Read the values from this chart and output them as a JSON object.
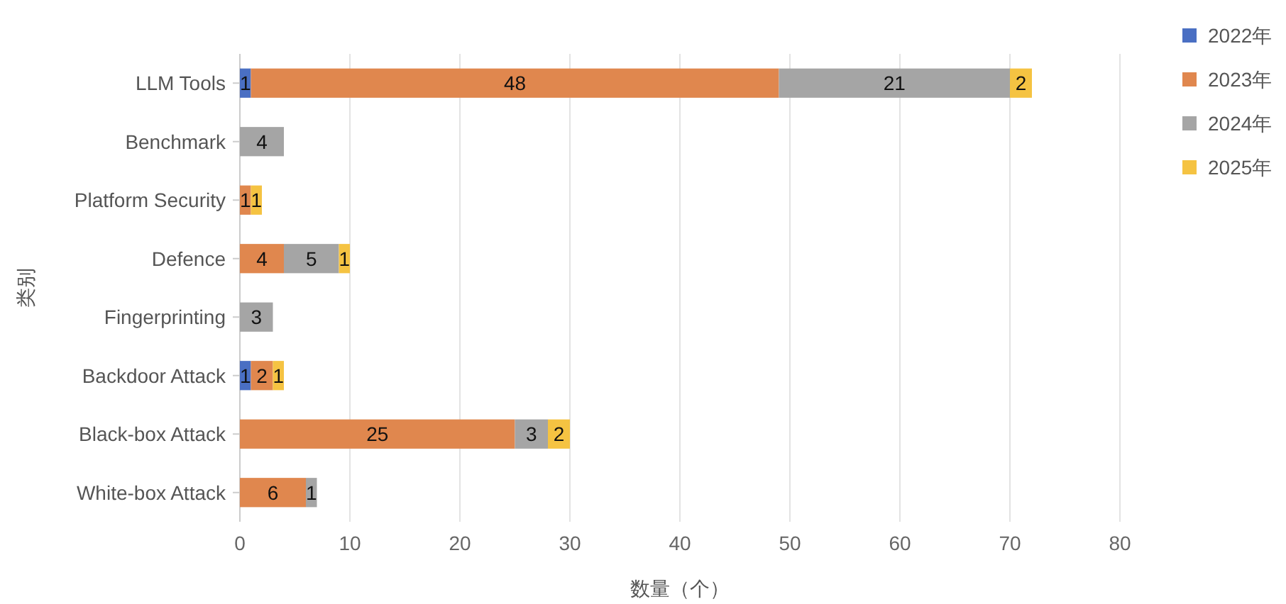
{
  "chart_data": {
    "type": "bar",
    "orientation": "horizontal",
    "stacked": true,
    "categories": [
      "LLM Tools",
      "Benchmark",
      "Platform Security",
      "Defence",
      "Fingerprinting",
      "Backdoor Attack",
      "Black-box Attack",
      "White-box Attack"
    ],
    "series": [
      {
        "name": "2022年",
        "color": "#4a6fc3",
        "values": [
          1,
          null,
          null,
          null,
          null,
          1,
          null,
          null
        ]
      },
      {
        "name": "2023年",
        "color": "#e0874e",
        "values": [
          48,
          null,
          1,
          4,
          null,
          2,
          25,
          6
        ]
      },
      {
        "name": "2024年",
        "color": "#a5a5a5",
        "values": [
          21,
          4,
          null,
          5,
          3,
          null,
          3,
          1
        ]
      },
      {
        "name": "2025年",
        "color": "#f5c342",
        "values": [
          2,
          null,
          1,
          1,
          null,
          1,
          2,
          null
        ]
      }
    ],
    "xlim": [
      0,
      80
    ],
    "xticks": [
      0,
      10,
      20,
      30,
      40,
      50,
      60,
      70,
      80
    ],
    "xlabel": "数量（个）",
    "ylabel": "类别",
    "grid": "x",
    "legend": "top right",
    "data_labels": true
  }
}
